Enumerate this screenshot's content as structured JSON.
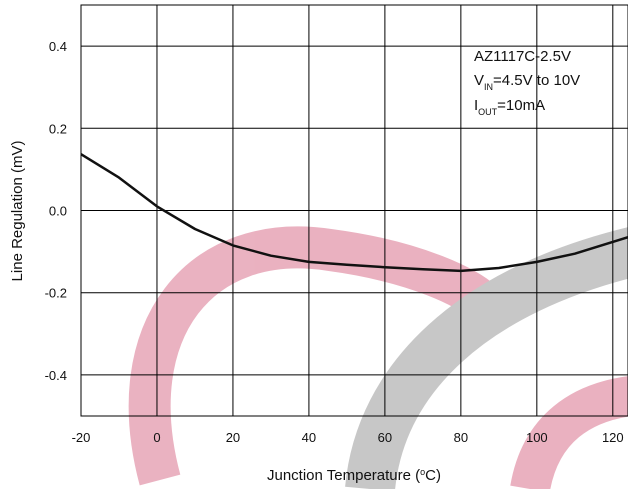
{
  "chart_data": {
    "type": "line",
    "y_label": "Line Regulation (mV)",
    "x_label_parts": [
      "Junction Temperature (",
      "o",
      "C)"
    ],
    "annotation": {
      "device": "AZ1117C-2.5V",
      "vin": [
        "V",
        "IN",
        "=4.5V to 10V"
      ],
      "iout": [
        "I",
        "OUT",
        "=10mA"
      ]
    },
    "x": [
      -20,
      -10,
      0,
      10,
      20,
      30,
      40,
      50,
      60,
      70,
      80,
      90,
      100,
      110,
      124
    ],
    "series": [
      {
        "color": "#111111",
        "values": [
          0.137,
          0.08,
          0.01,
          -0.045,
          -0.085,
          -0.11,
          -0.125,
          -0.132,
          -0.138,
          -0.143,
          -0.147,
          -0.14,
          -0.125,
          -0.105,
          -0.065
        ]
      }
    ],
    "xlim": [
      -20,
      124
    ],
    "ylim": [
      -0.5,
      0.5
    ],
    "xticks": [
      -20,
      0,
      20,
      40,
      60,
      80,
      100,
      120
    ],
    "yticks": [
      0.4,
      0.2,
      {
        "value": 0,
        "label": "0.0"
      },
      -0.2,
      -0.4
    ],
    "grid": true
  }
}
